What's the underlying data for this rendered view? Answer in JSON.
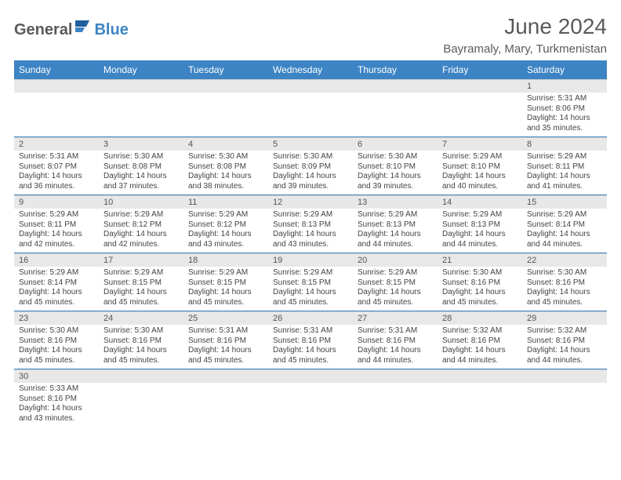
{
  "logo": {
    "part1": "General",
    "part2": "Blue"
  },
  "title": "June 2024",
  "location": "Bayramaly, Mary, Turkmenistan",
  "colors": {
    "header_bg": "#3d84c4",
    "header_text": "#ffffff",
    "daynum_bg": "#e8e8e8",
    "border": "#3d84c4",
    "text": "#444444",
    "title_text": "#5a5a5a"
  },
  "day_names": [
    "Sunday",
    "Monday",
    "Tuesday",
    "Wednesday",
    "Thursday",
    "Friday",
    "Saturday"
  ],
  "weeks": [
    [
      {
        "n": "",
        "sr": "",
        "ss": "",
        "dl": ""
      },
      {
        "n": "",
        "sr": "",
        "ss": "",
        "dl": ""
      },
      {
        "n": "",
        "sr": "",
        "ss": "",
        "dl": ""
      },
      {
        "n": "",
        "sr": "",
        "ss": "",
        "dl": ""
      },
      {
        "n": "",
        "sr": "",
        "ss": "",
        "dl": ""
      },
      {
        "n": "",
        "sr": "",
        "ss": "",
        "dl": ""
      },
      {
        "n": "1",
        "sr": "Sunrise: 5:31 AM",
        "ss": "Sunset: 8:06 PM",
        "dl": "Daylight: 14 hours and 35 minutes."
      }
    ],
    [
      {
        "n": "2",
        "sr": "Sunrise: 5:31 AM",
        "ss": "Sunset: 8:07 PM",
        "dl": "Daylight: 14 hours and 36 minutes."
      },
      {
        "n": "3",
        "sr": "Sunrise: 5:30 AM",
        "ss": "Sunset: 8:08 PM",
        "dl": "Daylight: 14 hours and 37 minutes."
      },
      {
        "n": "4",
        "sr": "Sunrise: 5:30 AM",
        "ss": "Sunset: 8:08 PM",
        "dl": "Daylight: 14 hours and 38 minutes."
      },
      {
        "n": "5",
        "sr": "Sunrise: 5:30 AM",
        "ss": "Sunset: 8:09 PM",
        "dl": "Daylight: 14 hours and 39 minutes."
      },
      {
        "n": "6",
        "sr": "Sunrise: 5:30 AM",
        "ss": "Sunset: 8:10 PM",
        "dl": "Daylight: 14 hours and 39 minutes."
      },
      {
        "n": "7",
        "sr": "Sunrise: 5:29 AM",
        "ss": "Sunset: 8:10 PM",
        "dl": "Daylight: 14 hours and 40 minutes."
      },
      {
        "n": "8",
        "sr": "Sunrise: 5:29 AM",
        "ss": "Sunset: 8:11 PM",
        "dl": "Daylight: 14 hours and 41 minutes."
      }
    ],
    [
      {
        "n": "9",
        "sr": "Sunrise: 5:29 AM",
        "ss": "Sunset: 8:11 PM",
        "dl": "Daylight: 14 hours and 42 minutes."
      },
      {
        "n": "10",
        "sr": "Sunrise: 5:29 AM",
        "ss": "Sunset: 8:12 PM",
        "dl": "Daylight: 14 hours and 42 minutes."
      },
      {
        "n": "11",
        "sr": "Sunrise: 5:29 AM",
        "ss": "Sunset: 8:12 PM",
        "dl": "Daylight: 14 hours and 43 minutes."
      },
      {
        "n": "12",
        "sr": "Sunrise: 5:29 AM",
        "ss": "Sunset: 8:13 PM",
        "dl": "Daylight: 14 hours and 43 minutes."
      },
      {
        "n": "13",
        "sr": "Sunrise: 5:29 AM",
        "ss": "Sunset: 8:13 PM",
        "dl": "Daylight: 14 hours and 44 minutes."
      },
      {
        "n": "14",
        "sr": "Sunrise: 5:29 AM",
        "ss": "Sunset: 8:13 PM",
        "dl": "Daylight: 14 hours and 44 minutes."
      },
      {
        "n": "15",
        "sr": "Sunrise: 5:29 AM",
        "ss": "Sunset: 8:14 PM",
        "dl": "Daylight: 14 hours and 44 minutes."
      }
    ],
    [
      {
        "n": "16",
        "sr": "Sunrise: 5:29 AM",
        "ss": "Sunset: 8:14 PM",
        "dl": "Daylight: 14 hours and 45 minutes."
      },
      {
        "n": "17",
        "sr": "Sunrise: 5:29 AM",
        "ss": "Sunset: 8:15 PM",
        "dl": "Daylight: 14 hours and 45 minutes."
      },
      {
        "n": "18",
        "sr": "Sunrise: 5:29 AM",
        "ss": "Sunset: 8:15 PM",
        "dl": "Daylight: 14 hours and 45 minutes."
      },
      {
        "n": "19",
        "sr": "Sunrise: 5:29 AM",
        "ss": "Sunset: 8:15 PM",
        "dl": "Daylight: 14 hours and 45 minutes."
      },
      {
        "n": "20",
        "sr": "Sunrise: 5:29 AM",
        "ss": "Sunset: 8:15 PM",
        "dl": "Daylight: 14 hours and 45 minutes."
      },
      {
        "n": "21",
        "sr": "Sunrise: 5:30 AM",
        "ss": "Sunset: 8:16 PM",
        "dl": "Daylight: 14 hours and 45 minutes."
      },
      {
        "n": "22",
        "sr": "Sunrise: 5:30 AM",
        "ss": "Sunset: 8:16 PM",
        "dl": "Daylight: 14 hours and 45 minutes."
      }
    ],
    [
      {
        "n": "23",
        "sr": "Sunrise: 5:30 AM",
        "ss": "Sunset: 8:16 PM",
        "dl": "Daylight: 14 hours and 45 minutes."
      },
      {
        "n": "24",
        "sr": "Sunrise: 5:30 AM",
        "ss": "Sunset: 8:16 PM",
        "dl": "Daylight: 14 hours and 45 minutes."
      },
      {
        "n": "25",
        "sr": "Sunrise: 5:31 AM",
        "ss": "Sunset: 8:16 PM",
        "dl": "Daylight: 14 hours and 45 minutes."
      },
      {
        "n": "26",
        "sr": "Sunrise: 5:31 AM",
        "ss": "Sunset: 8:16 PM",
        "dl": "Daylight: 14 hours and 45 minutes."
      },
      {
        "n": "27",
        "sr": "Sunrise: 5:31 AM",
        "ss": "Sunset: 8:16 PM",
        "dl": "Daylight: 14 hours and 44 minutes."
      },
      {
        "n": "28",
        "sr": "Sunrise: 5:32 AM",
        "ss": "Sunset: 8:16 PM",
        "dl": "Daylight: 14 hours and 44 minutes."
      },
      {
        "n": "29",
        "sr": "Sunrise: 5:32 AM",
        "ss": "Sunset: 8:16 PM",
        "dl": "Daylight: 14 hours and 44 minutes."
      }
    ],
    [
      {
        "n": "30",
        "sr": "Sunrise: 5:33 AM",
        "ss": "Sunset: 8:16 PM",
        "dl": "Daylight: 14 hours and 43 minutes."
      },
      {
        "n": "",
        "sr": "",
        "ss": "",
        "dl": ""
      },
      {
        "n": "",
        "sr": "",
        "ss": "",
        "dl": ""
      },
      {
        "n": "",
        "sr": "",
        "ss": "",
        "dl": ""
      },
      {
        "n": "",
        "sr": "",
        "ss": "",
        "dl": ""
      },
      {
        "n": "",
        "sr": "",
        "ss": "",
        "dl": ""
      },
      {
        "n": "",
        "sr": "",
        "ss": "",
        "dl": ""
      }
    ]
  ]
}
